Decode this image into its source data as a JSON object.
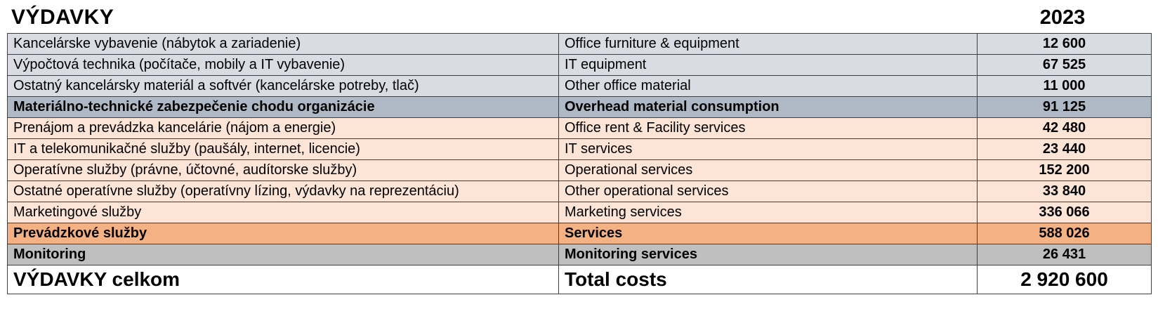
{
  "header": {
    "title": "VÝDAVKY",
    "year": "2023"
  },
  "colors": {
    "row_gray_light": "#d9dde3",
    "row_gray_subtotal": "#aeb9c5",
    "row_peach_light": "#fce4d6",
    "row_orange_subtotal": "#f4b183",
    "row_monitoring_gray": "#bfbfbf",
    "border": "#3f3f3f"
  },
  "rows": [
    {
      "sk": "Kancelárske vybavenie (nábytok a zariadenie)",
      "en": "Office furniture & equipment",
      "amount": "12 600",
      "variant": "gray"
    },
    {
      "sk": "Výpočtová technika (počítače, mobily a IT vybavenie)",
      "en": "IT equipment",
      "amount": "67 525",
      "variant": "gray"
    },
    {
      "sk": "Ostatný kancelársky materiál a softvér (kancelárske potreby, tlač)",
      "en": "Other office material",
      "amount": "11 000",
      "variant": "gray"
    },
    {
      "sk": "Materiálno-technické zabezpečenie chodu organizácie",
      "en": "Overhead material consumption",
      "amount": "91 125",
      "variant": "gray-subtotal"
    },
    {
      "sk": "Prenájom a prevádzka kancelárie (nájom a energie)",
      "en": "Office rent & Facility services",
      "amount": "42 480",
      "variant": "peach"
    },
    {
      "sk": "IT a telekomunikačné služby (paušály, internet, licencie)",
      "en": "IT services",
      "amount": "23 440",
      "variant": "peach"
    },
    {
      "sk": "Operatívne služby (právne, účtovné, audítorske služby)",
      "en": "Operational services",
      "amount": "152 200",
      "variant": "peach"
    },
    {
      "sk": "Ostatné operatívne služby (operatívny lízing, výdavky na reprezentáciu)",
      "en": "Other operational services",
      "amount": "33 840",
      "variant": "peach"
    },
    {
      "sk": "Marketingové služby",
      "en": "Marketing services",
      "amount": "336 066",
      "variant": "peach"
    },
    {
      "sk": "Prevádzkové služby",
      "en": "Services",
      "amount": "588 026",
      "variant": "orange-subtotal"
    },
    {
      "sk": "Monitoring",
      "en": "Monitoring services",
      "amount": "26 431",
      "variant": "monitoring"
    },
    {
      "sk": "VÝDAVKY celkom",
      "en": "Total costs",
      "amount": "2 920 600",
      "variant": "total"
    }
  ]
}
